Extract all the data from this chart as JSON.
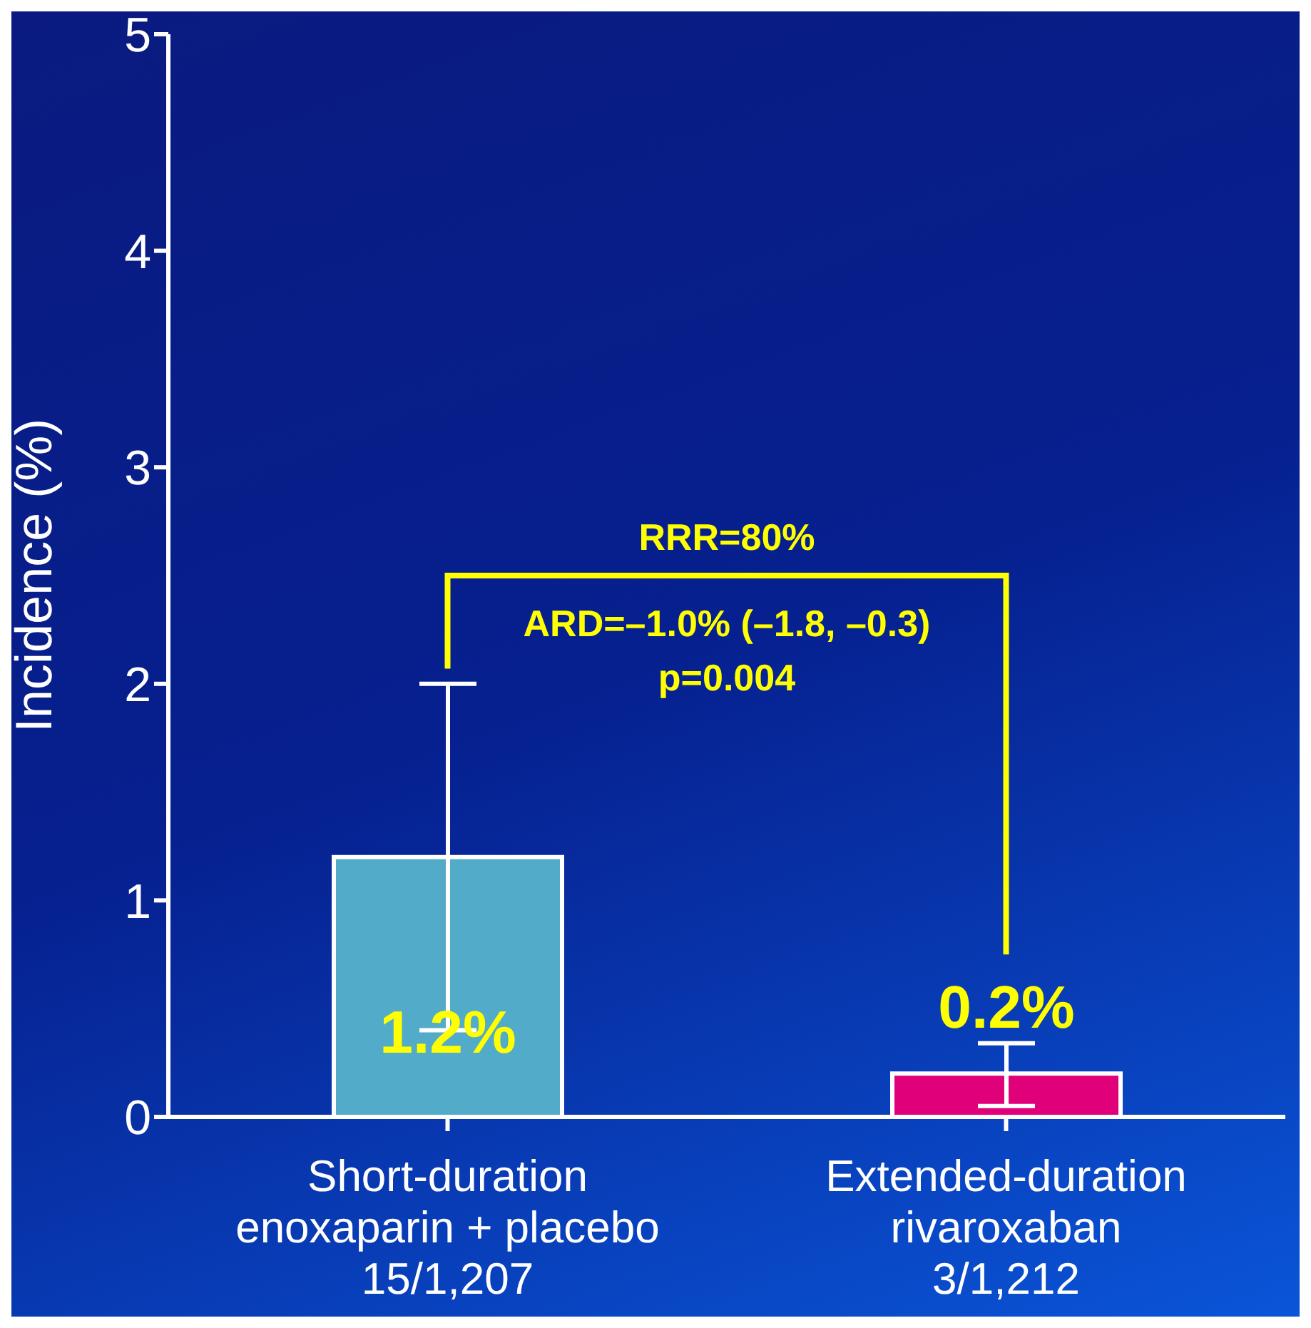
{
  "chart_data": {
    "type": "bar",
    "ylabel": "Incidence (%)",
    "categories": [
      "Short-duration\nenoxaparin + placebo\n15/1,207",
      "Extended-duration\nrivaroxaban\n3/1,212"
    ],
    "values": [
      1.2,
      0.2
    ],
    "colors": [
      "#52abc8",
      "#e0007a"
    ],
    "errors": [
      [
        0.4,
        2.0
      ],
      [
        0.05,
        0.34
      ]
    ],
    "value_labels": [
      "1.2%",
      "0.2%"
    ],
    "ylim": [
      0,
      5
    ],
    "yticks": [
      0,
      1,
      2,
      3,
      4,
      5
    ],
    "grid": false,
    "legend": false,
    "annotations": [
      "RRR=80%",
      "ARD=–1.0% (–1.8, –0.3)",
      "p=0.004"
    ]
  }
}
